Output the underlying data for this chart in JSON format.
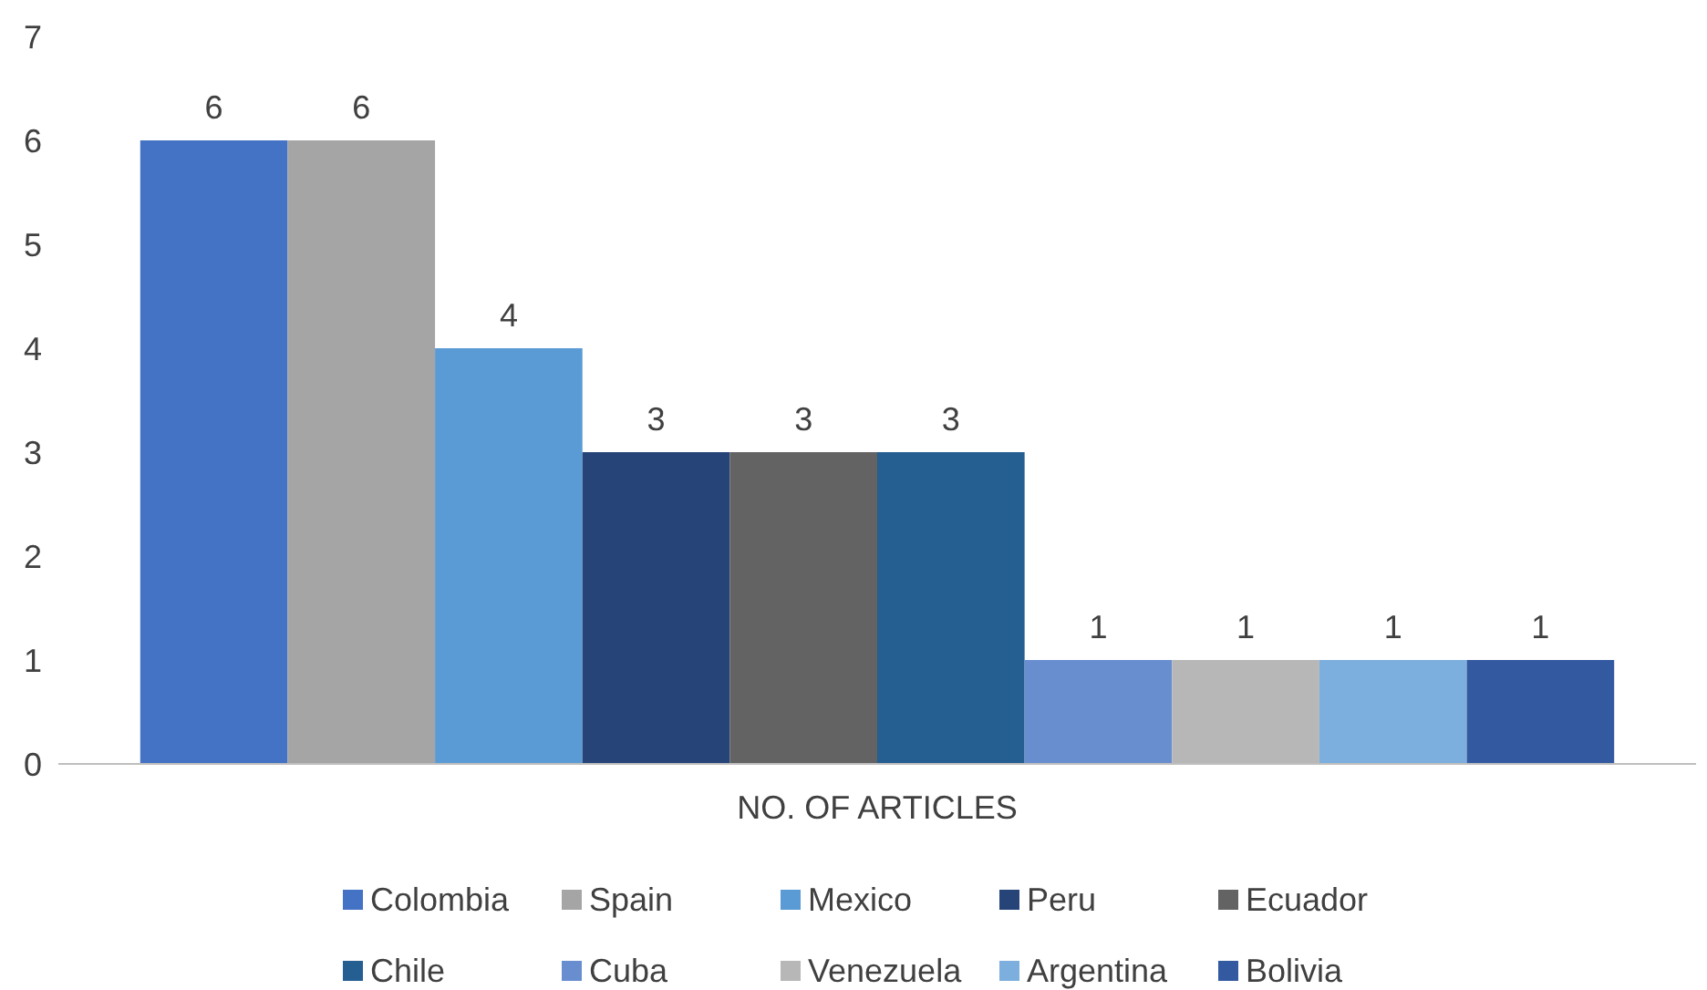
{
  "chart_data": {
    "type": "bar",
    "categories": [
      "NO. OF ARTICLES"
    ],
    "series": [
      {
        "name": "Colombia",
        "color": "#4472c4",
        "values": [
          6
        ]
      },
      {
        "name": "Spain",
        "color": "#a5a5a5",
        "values": [
          6
        ]
      },
      {
        "name": "Mexico",
        "color": "#5b9bd5",
        "values": [
          4
        ]
      },
      {
        "name": "Peru",
        "color": "#264478",
        "values": [
          3
        ]
      },
      {
        "name": "Ecuador",
        "color": "#636363",
        "values": [
          3
        ]
      },
      {
        "name": "Chile",
        "color": "#255e91",
        "values": [
          3
        ]
      },
      {
        "name": "Cuba",
        "color": "#698ed0",
        "values": [
          1
        ]
      },
      {
        "name": "Venezuela",
        "color": "#b7b7b7",
        "values": [
          1
        ]
      },
      {
        "name": "Argentina",
        "color": "#7cafdd",
        "values": [
          1
        ]
      },
      {
        "name": "Bolivia",
        "color": "#335aa1",
        "values": [
          1
        ]
      }
    ],
    "ylim": [
      0,
      7
    ],
    "yticks": [
      0,
      1,
      2,
      3,
      4,
      5,
      6,
      7
    ],
    "data_labels": true,
    "legend": "bottom",
    "grid": false
  }
}
